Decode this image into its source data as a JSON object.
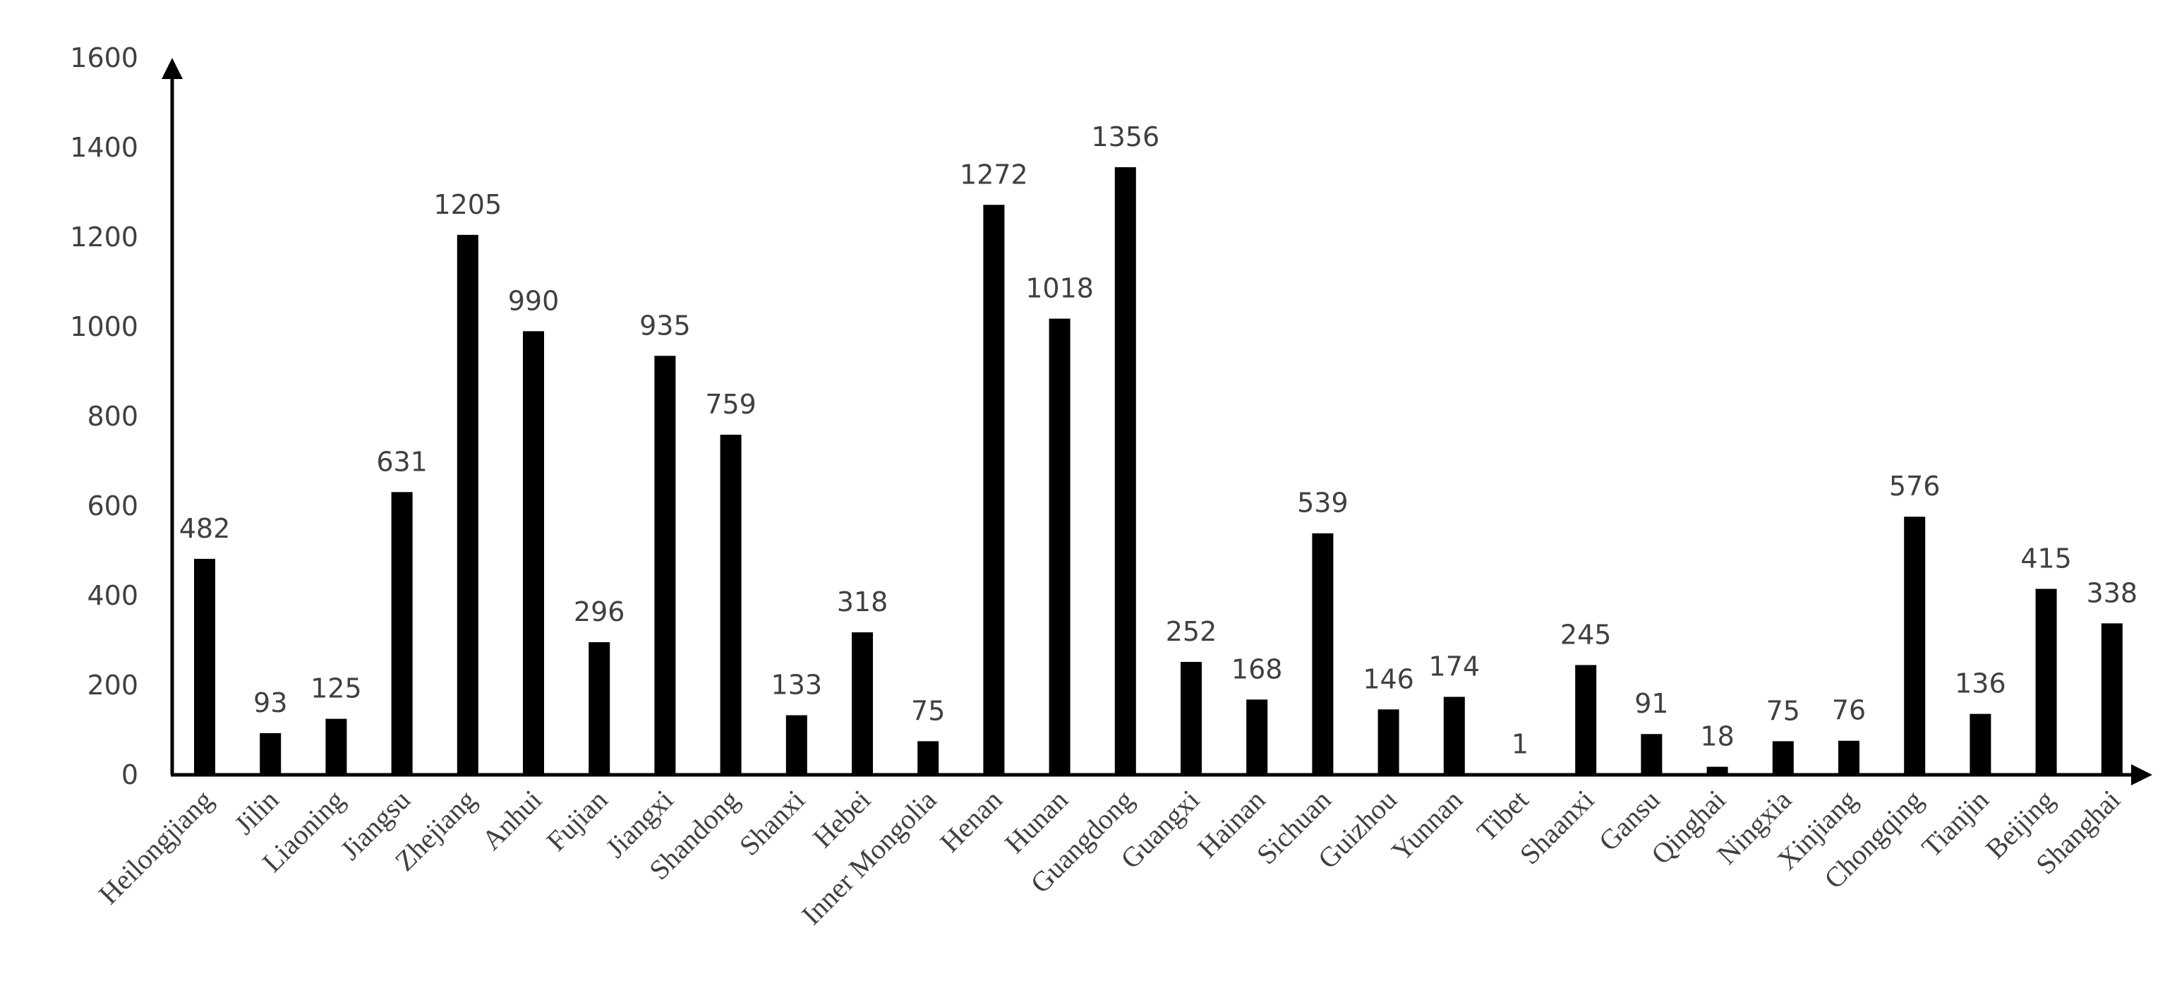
{
  "chart_data": {
    "type": "bar",
    "categories": [
      "Heilongjiang",
      "Jilin",
      "Liaoning",
      "Jiangsu",
      "Zhejiang",
      "Anhui",
      "Fujian",
      "Jiangxi",
      "Shandong",
      "Shanxi",
      "Hebei",
      "Inner Mongolia",
      "Henan",
      "Hunan",
      "Guangdong",
      "Guangxi",
      "Hainan",
      "Sichuan",
      "Guizhou",
      "Yunnan",
      "Tibet",
      "Shaanxi",
      "Gansu",
      "Qinghai",
      "Ningxia",
      "Xinjiang",
      "Chongqing",
      "Tianjin",
      "Beijing",
      "Shanghai"
    ],
    "values": [
      482,
      93,
      125,
      631,
      1205,
      990,
      296,
      935,
      759,
      133,
      318,
      75,
      1272,
      1018,
      1356,
      252,
      168,
      539,
      146,
      174,
      1,
      245,
      91,
      18,
      75,
      76,
      576,
      136,
      415,
      338
    ],
    "data_labels": [
      "482",
      "93",
      "125",
      "631",
      "1205",
      "990",
      "296",
      "935",
      "759",
      "133",
      "318",
      "75",
      "1272",
      "1018",
      "1356",
      "252",
      "168",
      "539",
      "146",
      "174",
      "1",
      "245",
      "91",
      "18",
      "75",
      "76",
      "576",
      "136",
      "415",
      "338"
    ],
    "yticks": [
      "0",
      "200",
      "400",
      "600",
      "800",
      "1000",
      "1200",
      "1400",
      "1600"
    ],
    "ylim": [
      0,
      1600
    ],
    "grid": false,
    "legend": "none",
    "bar_color": "#000000",
    "text_color": "#404040"
  }
}
